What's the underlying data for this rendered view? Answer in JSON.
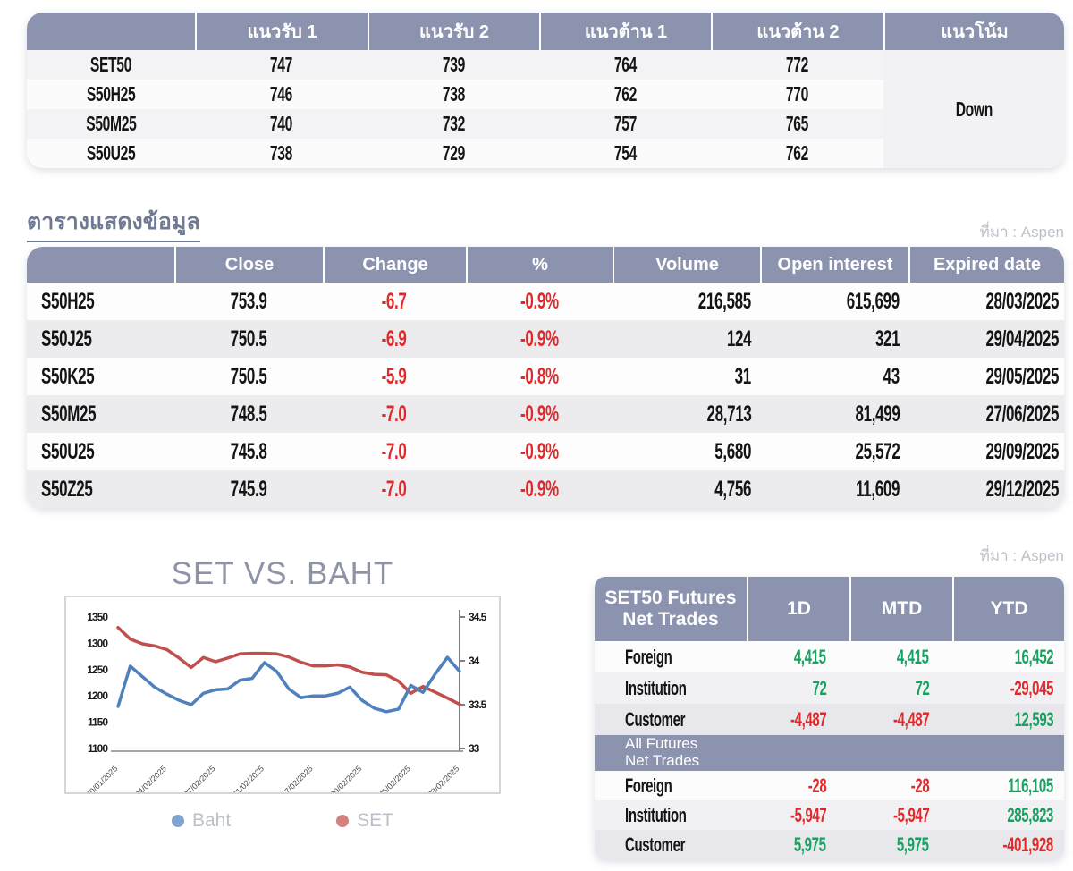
{
  "palette": {
    "header_bg": "#8b93ae",
    "positive": "#18a160",
    "negative": "#e1292b",
    "title": "#6f7992",
    "source": "#bcc0c9",
    "chart_title": "#8e94a5",
    "chart_blue": "#4f81bd",
    "chart_red": "#c0504d"
  },
  "support_table": {
    "headers": [
      "",
      "แนวรับ 1",
      "แนวรับ 2",
      "แนวต้าน 1",
      "แนวต้าน 2",
      "แนวโน้ม"
    ],
    "rows": [
      {
        "name": "SET50",
        "s1": "747",
        "s2": "739",
        "r1": "764",
        "r2": "772"
      },
      {
        "name": "S50H25",
        "s1": "746",
        "s2": "738",
        "r1": "762",
        "r2": "770"
      },
      {
        "name": "S50M25",
        "s1": "740",
        "s2": "732",
        "r1": "757",
        "r2": "765"
      },
      {
        "name": "S50U25",
        "s1": "738",
        "s2": "729",
        "r1": "754",
        "r2": "762"
      }
    ],
    "trend": "Down"
  },
  "data_section": {
    "title": "ตารางแสดงข้อมูล",
    "source": "ที่มา : Aspen"
  },
  "futures_table": {
    "headers": [
      "",
      "Close",
      "Change",
      "%",
      "Volume",
      "Open interest",
      "Expired date"
    ],
    "rows": [
      {
        "name": "S50H25",
        "close": "753.9",
        "change": "-6.7",
        "pct": "-0.9%",
        "volume": "216,585",
        "oi": "615,699",
        "expiry": "28/03/2025"
      },
      {
        "name": "S50J25",
        "close": "750.5",
        "change": "-6.9",
        "pct": "-0.9%",
        "volume": "124",
        "oi": "321",
        "expiry": "29/04/2025"
      },
      {
        "name": "S50K25",
        "close": "750.5",
        "change": "-5.9",
        "pct": "-0.8%",
        "volume": "31",
        "oi": "43",
        "expiry": "29/05/2025"
      },
      {
        "name": "S50M25",
        "close": "748.5",
        "change": "-7.0",
        "pct": "-0.9%",
        "volume": "28,713",
        "oi": "81,499",
        "expiry": "27/06/2025"
      },
      {
        "name": "S50U25",
        "close": "745.8",
        "change": "-7.0",
        "pct": "-0.9%",
        "volume": "5,680",
        "oi": "25,572",
        "expiry": "29/09/2025"
      },
      {
        "name": "S50Z25",
        "close": "745.9",
        "change": "-7.0",
        "pct": "-0.9%",
        "volume": "4,756",
        "oi": "11,609",
        "expiry": "29/12/2025"
      }
    ]
  },
  "chart_section": {
    "title": "SET VS. BAHT",
    "source": "ที่มา : Aspen",
    "legend": [
      {
        "label": "Baht",
        "color": "#4f81bd"
      },
      {
        "label": "SET",
        "color": "#c0504d"
      }
    ]
  },
  "chart_data": {
    "type": "line",
    "title": "SET VS. BAHT",
    "x_labels": [
      "30/01/2025",
      "04/02/2025",
      "07/02/2025",
      "11/02/2025",
      "17/02/2025",
      "20/02/2025",
      "25/02/2025",
      "28/02/2025"
    ],
    "x_label_indices": [
      0,
      4,
      8,
      12,
      16,
      20,
      24,
      28
    ],
    "left_axis": {
      "min": 1100,
      "max": 1350,
      "ticks": [
        1350,
        1300,
        1250,
        1200,
        1150,
        1100
      ]
    },
    "right_axis": {
      "min": 33,
      "max": 34.5,
      "ticks": [
        34.5,
        34,
        33.5,
        33
      ]
    },
    "legend_position": "bottom",
    "series": [
      {
        "name": "SET",
        "axis": "left",
        "color": "#c0504d",
        "values": [
          1330,
          1308,
          1299,
          1295,
          1288,
          1272,
          1254,
          1273,
          1265,
          1272,
          1280,
          1281,
          1281,
          1280,
          1274,
          1264,
          1257,
          1257,
          1259,
          1255,
          1245,
          1241,
          1240,
          1228,
          1205,
          1218,
          1207,
          1196,
          1184
        ]
      },
      {
        "name": "Baht",
        "axis": "right",
        "color": "#4f81bd",
        "values": [
          33.48,
          33.94,
          33.82,
          33.7,
          33.62,
          33.55,
          33.5,
          33.63,
          33.67,
          33.68,
          33.78,
          33.8,
          33.98,
          33.88,
          33.68,
          33.58,
          33.6,
          33.6,
          33.63,
          33.7,
          33.55,
          33.46,
          33.42,
          33.45,
          33.72,
          33.64,
          33.85,
          34.04,
          33.88
        ]
      }
    ]
  },
  "net_trades": {
    "source": "ที่มา : Aspen",
    "columns": [
      "1D",
      "MTD",
      "YTD"
    ],
    "sections": [
      {
        "title_line1": "SET50 Futures",
        "title_line2": "Net Trades",
        "rows": [
          {
            "name": "Foreign",
            "d1": "4,415",
            "mtd": "4,415",
            "ytd": "16,452"
          },
          {
            "name": "Institution",
            "d1": "72",
            "mtd": "72",
            "ytd": "-29,045"
          },
          {
            "name": "Customer",
            "d1": "-4,487",
            "mtd": "-4,487",
            "ytd": "12,593"
          }
        ]
      },
      {
        "title_line1": "All Futures",
        "title_line2": "Net Trades",
        "rows": [
          {
            "name": "Foreign",
            "d1": "-28",
            "mtd": "-28",
            "ytd": "116,105"
          },
          {
            "name": "Institution",
            "d1": "-5,947",
            "mtd": "-5,947",
            "ytd": "285,823"
          },
          {
            "name": "Customer",
            "d1": "5,975",
            "mtd": "5,975",
            "ytd": "-401,928"
          }
        ]
      }
    ]
  }
}
